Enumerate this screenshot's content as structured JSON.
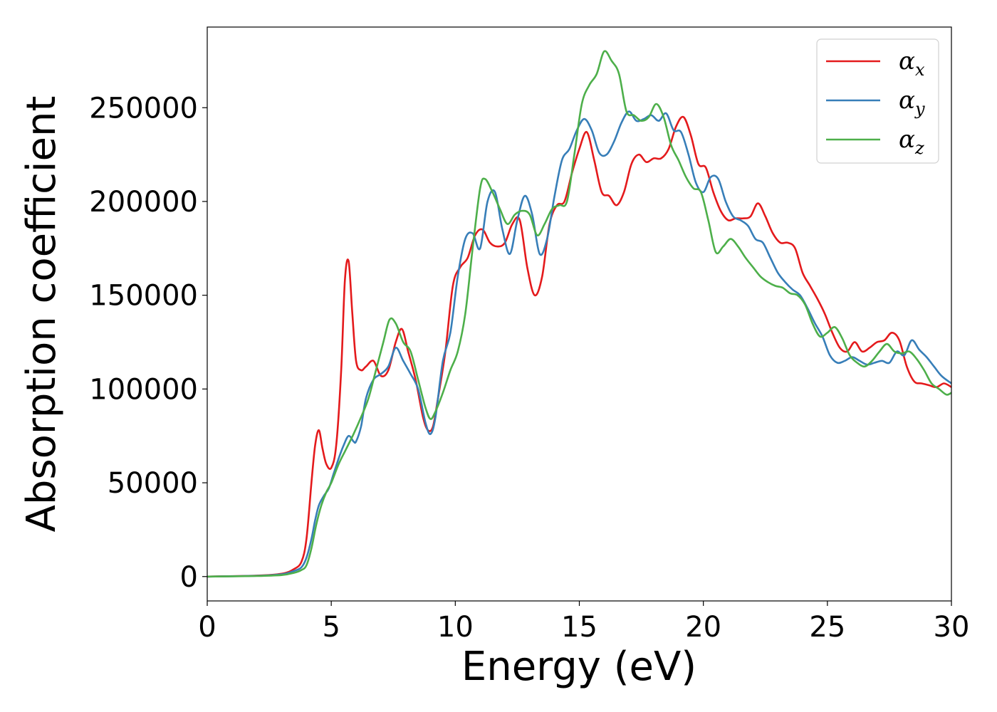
{
  "chart_data": {
    "type": "line",
    "xlabel": "Energy (eV)",
    "ylabel": "Absorption coefficient",
    "xlim": [
      0,
      30
    ],
    "ylim": [
      -13000,
      293000
    ],
    "xticks": [
      0,
      5,
      10,
      15,
      20,
      25,
      30
    ],
    "yticks": [
      0,
      50000,
      100000,
      150000,
      200000,
      250000
    ],
    "grid": false,
    "legend_position": "top-right",
    "series": [
      {
        "name": "α_x",
        "base": "α",
        "sub": "x",
        "color": "#e41a1c",
        "x": [
          0,
          2,
          3,
          3.5,
          3.8,
          4.0,
          4.2,
          4.35,
          4.5,
          4.65,
          4.8,
          5.0,
          5.2,
          5.4,
          5.55,
          5.7,
          5.85,
          6.0,
          6.2,
          6.4,
          6.7,
          7.0,
          7.3,
          7.6,
          7.85,
          8.1,
          8.4,
          8.7,
          8.9,
          9.1,
          9.3,
          9.6,
          9.9,
          10.2,
          10.5,
          10.8,
          11.1,
          11.4,
          11.7,
          12.0,
          12.3,
          12.6,
          12.9,
          13.2,
          13.5,
          13.8,
          14.1,
          14.4,
          14.7,
          15.0,
          15.3,
          15.6,
          15.9,
          16.2,
          16.5,
          16.8,
          17.1,
          17.4,
          17.7,
          18.0,
          18.3,
          18.6,
          18.9,
          19.2,
          19.5,
          19.8,
          20.1,
          20.4,
          20.7,
          21.0,
          21.3,
          21.6,
          21.9,
          22.2,
          22.5,
          22.8,
          23.1,
          23.4,
          23.7,
          24.0,
          24.3,
          24.6,
          24.9,
          25.2,
          25.5,
          25.8,
          26.1,
          26.4,
          26.7,
          27.0,
          27.3,
          27.6,
          27.9,
          28.2,
          28.5,
          28.8,
          29.1,
          29.4,
          29.7,
          30.0
        ],
        "y": [
          0,
          500,
          1500,
          4000,
          8000,
          20000,
          50000,
          70000,
          78000,
          68000,
          60000,
          58000,
          70000,
          110000,
          158000,
          168000,
          140000,
          115000,
          110000,
          112000,
          115000,
          107000,
          110000,
          125000,
          132000,
          120000,
          105000,
          85000,
          78000,
          80000,
          95000,
          120000,
          155000,
          165000,
          170000,
          182000,
          185000,
          178000,
          176000,
          178000,
          188000,
          190000,
          165000,
          150000,
          160000,
          188000,
          198000,
          200000,
          215000,
          228000,
          237000,
          222000,
          205000,
          203000,
          198000,
          205000,
          220000,
          225000,
          221000,
          223000,
          223000,
          228000,
          240000,
          245000,
          235000,
          220000,
          218000,
          205000,
          195000,
          190000,
          191000,
          191000,
          192000,
          199000,
          192000,
          183000,
          178000,
          178000,
          175000,
          162000,
          155000,
          148000,
          140000,
          130000,
          122000,
          120000,
          125000,
          120000,
          122000,
          125000,
          126000,
          130000,
          126000,
          112000,
          104000,
          103000,
          102000,
          101000,
          103000,
          101000
        ]
      },
      {
        "name": "α_y",
        "base": "α",
        "sub": "y",
        "color": "#377eb8",
        "x": [
          0,
          2,
          3,
          3.5,
          3.8,
          4.0,
          4.2,
          4.35,
          4.5,
          4.7,
          4.9,
          5.1,
          5.3,
          5.5,
          5.7,
          5.9,
          6.0,
          6.2,
          6.4,
          6.7,
          7.0,
          7.3,
          7.6,
          7.9,
          8.2,
          8.5,
          8.8,
          9.0,
          9.2,
          9.5,
          9.8,
          10.1,
          10.4,
          10.7,
          11.0,
          11.3,
          11.6,
          11.9,
          12.2,
          12.5,
          12.8,
          13.1,
          13.4,
          13.7,
          14.0,
          14.3,
          14.6,
          14.9,
          15.2,
          15.5,
          15.8,
          16.1,
          16.4,
          16.7,
          17.0,
          17.3,
          17.6,
          17.9,
          18.2,
          18.5,
          18.8,
          19.1,
          19.4,
          19.7,
          20.0,
          20.3,
          20.6,
          20.9,
          21.2,
          21.5,
          21.8,
          22.1,
          22.4,
          22.7,
          23.0,
          23.3,
          23.6,
          23.9,
          24.2,
          24.5,
          24.8,
          25.1,
          25.4,
          25.7,
          26.0,
          26.3,
          26.6,
          26.9,
          27.2,
          27.5,
          27.8,
          28.1,
          28.4,
          28.7,
          29.0,
          29.3,
          29.6,
          30.0
        ],
        "y": [
          0,
          400,
          1200,
          3000,
          5000,
          10000,
          20000,
          30000,
          38000,
          43000,
          47000,
          55000,
          63000,
          70000,
          75000,
          72000,
          72000,
          80000,
          95000,
          105000,
          108000,
          112000,
          122000,
          115000,
          108000,
          100000,
          82000,
          76000,
          85000,
          115000,
          130000,
          160000,
          180000,
          183000,
          175000,
          200000,
          205000,
          185000,
          172000,
          190000,
          203000,
          193000,
          172000,
          180000,
          203000,
          222000,
          228000,
          238000,
          244000,
          238000,
          226000,
          225000,
          232000,
          242000,
          248000,
          243000,
          244000,
          246000,
          243000,
          247000,
          238000,
          237000,
          225000,
          210000,
          205000,
          213000,
          212000,
          200000,
          192000,
          190000,
          187000,
          180000,
          178000,
          170000,
          162000,
          157000,
          153000,
          150000,
          143000,
          135000,
          128000,
          118000,
          114000,
          115000,
          117000,
          115000,
          113000,
          114000,
          115000,
          114000,
          120000,
          118000,
          126000,
          121000,
          117000,
          112000,
          107000,
          103000
        ]
      },
      {
        "name": "α_z",
        "base": "α",
        "sub": "z",
        "color": "#4daf4a",
        "x": [
          0,
          2,
          3,
          3.5,
          3.8,
          4.0,
          4.2,
          4.4,
          4.6,
          4.8,
          5.0,
          5.3,
          5.6,
          5.9,
          6.2,
          6.5,
          6.8,
          7.1,
          7.35,
          7.6,
          7.9,
          8.2,
          8.5,
          8.8,
          9.0,
          9.2,
          9.5,
          9.8,
          10.1,
          10.4,
          10.7,
          11.0,
          11.2,
          11.5,
          11.8,
          12.1,
          12.4,
          12.7,
          13.0,
          13.3,
          13.6,
          13.9,
          14.2,
          14.5,
          14.8,
          15.1,
          15.4,
          15.7,
          16.0,
          16.3,
          16.6,
          16.9,
          17.2,
          17.5,
          17.8,
          18.1,
          18.4,
          18.7,
          19.0,
          19.3,
          19.6,
          19.9,
          20.2,
          20.5,
          20.8,
          21.1,
          21.4,
          21.7,
          22.0,
          22.3,
          22.6,
          22.9,
          23.2,
          23.5,
          23.8,
          24.1,
          24.4,
          24.7,
          25.0,
          25.3,
          25.6,
          25.9,
          26.2,
          26.5,
          26.8,
          27.1,
          27.4,
          27.7,
          28.0,
          28.3,
          28.6,
          28.9,
          29.2,
          29.5,
          29.8,
          30.0
        ],
        "y": [
          0,
          300,
          800,
          2000,
          3500,
          6000,
          15000,
          28000,
          38000,
          45000,
          50000,
          60000,
          68000,
          76000,
          85000,
          95000,
          110000,
          125000,
          137000,
          135000,
          125000,
          120000,
          105000,
          90000,
          84000,
          88000,
          98000,
          110000,
          120000,
          140000,
          175000,
          207000,
          212000,
          205000,
          196000,
          188000,
          193000,
          195000,
          193000,
          182000,
          188000,
          196000,
          198000,
          200000,
          225000,
          252000,
          262000,
          268000,
          280000,
          275000,
          268000,
          248000,
          246000,
          243000,
          245000,
          252000,
          245000,
          230000,
          222000,
          213000,
          207000,
          205000,
          190000,
          173000,
          176000,
          180000,
          176000,
          170000,
          165000,
          160000,
          157000,
          155000,
          154000,
          151000,
          150000,
          145000,
          135000,
          128000,
          130000,
          133000,
          127000,
          118000,
          114000,
          112000,
          115000,
          120000,
          124000,
          120000,
          119000,
          120000,
          116000,
          110000,
          103000,
          100000,
          97000,
          98000
        ]
      }
    ]
  }
}
